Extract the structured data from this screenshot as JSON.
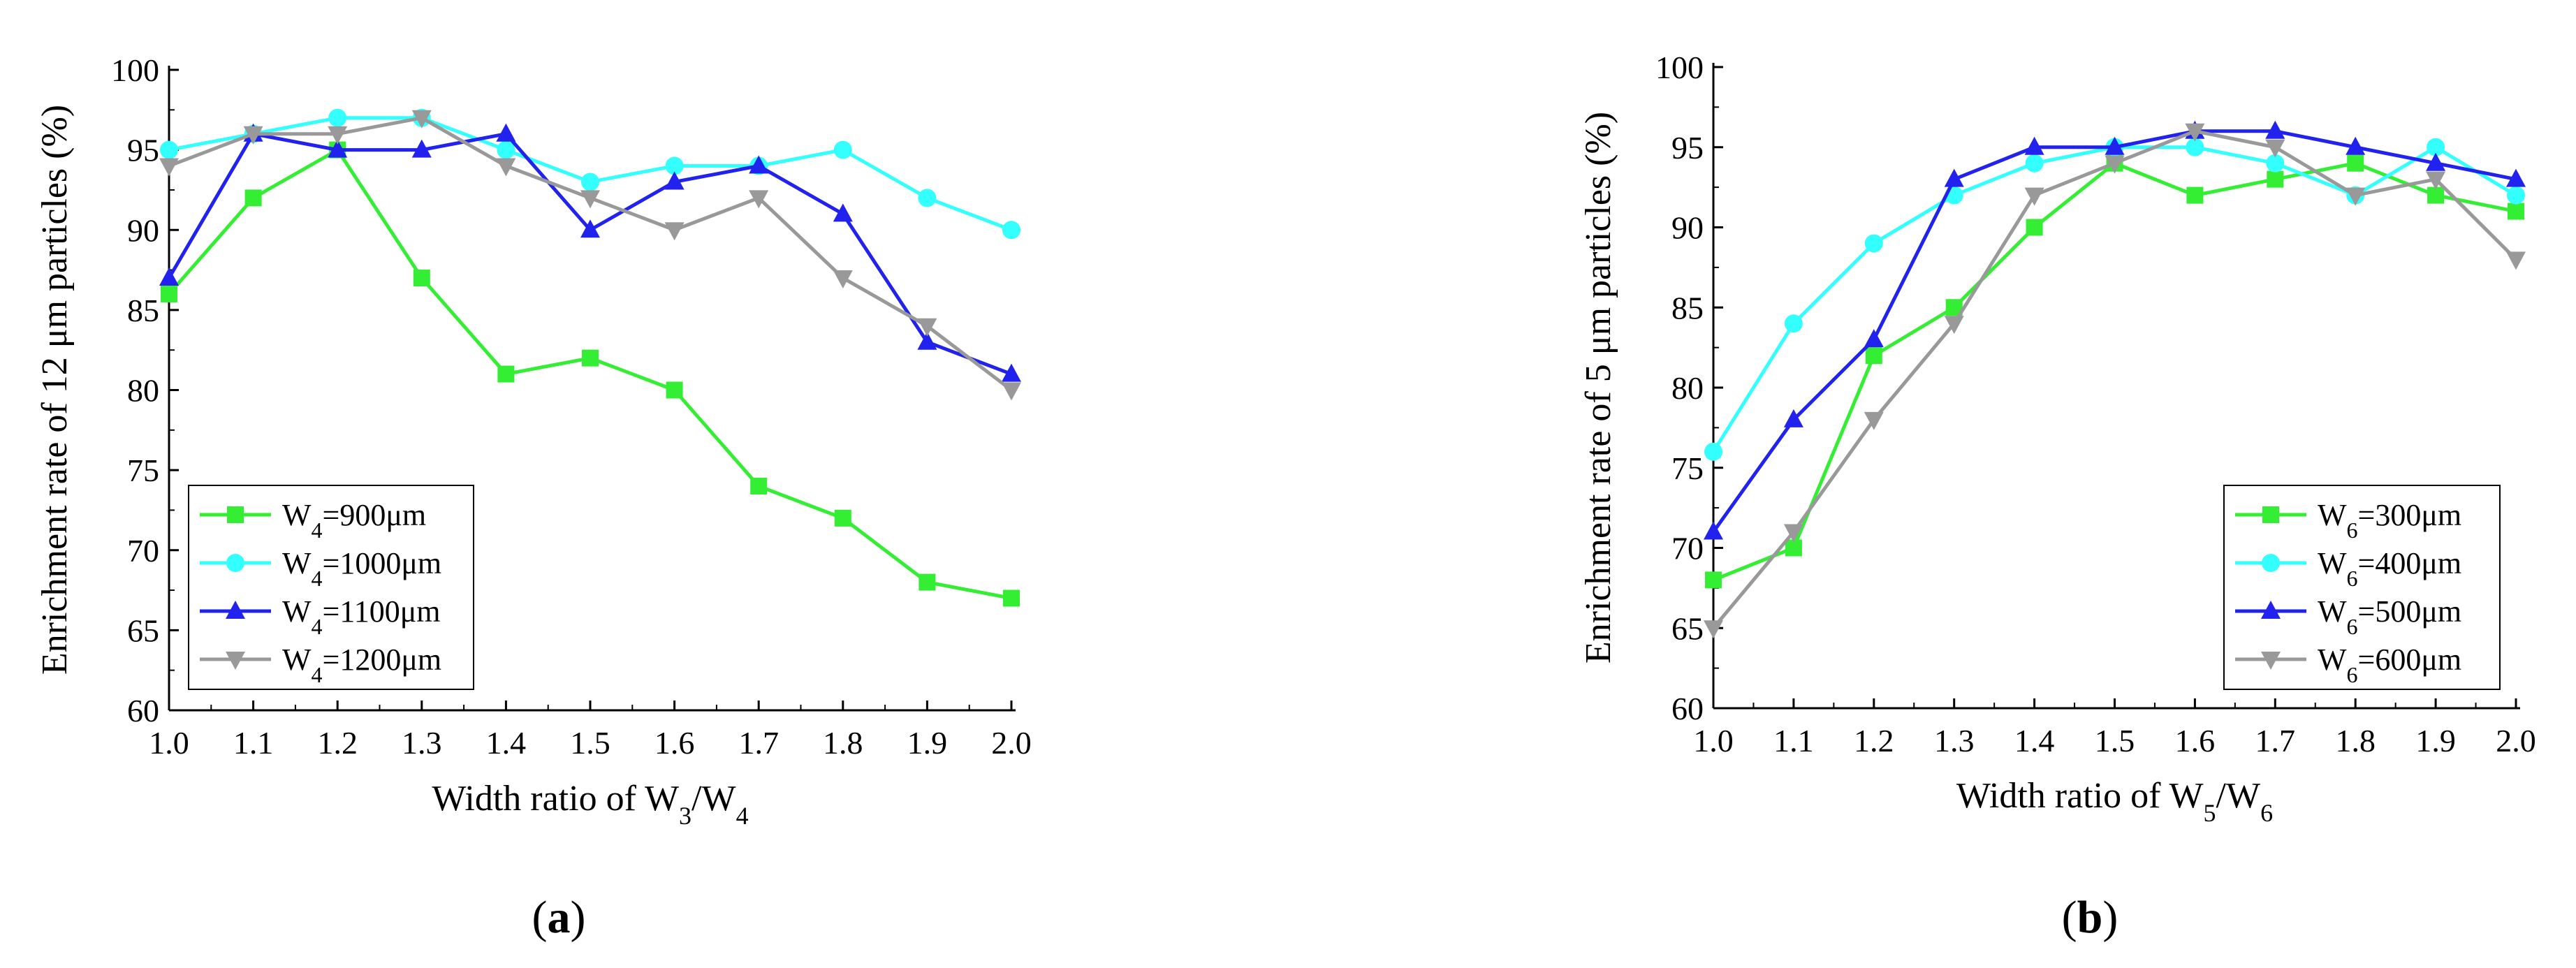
{
  "chart_data": [
    {
      "type": "line",
      "panel_label": "(a)",
      "xlabel": "Width ratio of W3/W4",
      "ylabel": "Enrichment rate of 12 μm particles (%)",
      "xlim": [
        1.0,
        2.0
      ],
      "ylim": [
        60,
        100
      ],
      "x_ticks": [
        "1.0",
        "1.1",
        "1.2",
        "1.3",
        "1.4",
        "1.5",
        "1.6",
        "1.7",
        "1.8",
        "1.9",
        "2.0"
      ],
      "y_ticks": [
        "60",
        "65",
        "70",
        "75",
        "80",
        "85",
        "90",
        "95",
        "100"
      ],
      "legend_position": "bottom-left",
      "x": [
        1.0,
        1.1,
        1.2,
        1.3,
        1.4,
        1.5,
        1.6,
        1.7,
        1.8,
        1.9,
        2.0
      ],
      "series": [
        {
          "name": "W4=900μm",
          "color": "#33ee33",
          "marker": "square",
          "values": [
            86,
            92,
            95,
            87,
            81,
            82,
            80,
            74,
            72,
            68,
            67
          ]
        },
        {
          "name": "W4=1000μm",
          "color": "#33ffff",
          "marker": "circle",
          "values": [
            95,
            96,
            97,
            97,
            95,
            93,
            94,
            94,
            95,
            92,
            90
          ]
        },
        {
          "name": "W4=1100μm",
          "color": "#2222ee",
          "marker": "triangle-up",
          "values": [
            87,
            96,
            95,
            95,
            96,
            90,
            93,
            94,
            91,
            83,
            81
          ]
        },
        {
          "name": "W4=1200μm",
          "color": "#999999",
          "marker": "triangle-down",
          "values": [
            94,
            96,
            96,
            97,
            94,
            92,
            90,
            92,
            87,
            84,
            80
          ]
        }
      ]
    },
    {
      "type": "line",
      "panel_label": "(b)",
      "xlabel": "Width ratio of W5/W6",
      "ylabel": "Enrichment rate of 5 μm particles (%)",
      "xlim": [
        1.0,
        2.0
      ],
      "ylim": [
        60,
        100
      ],
      "x_ticks": [
        "1.0",
        "1.1",
        "1.2",
        "1.3",
        "1.4",
        "1.5",
        "1.6",
        "1.7",
        "1.8",
        "1.9",
        "2.0"
      ],
      "y_ticks": [
        "60",
        "65",
        "70",
        "75",
        "80",
        "85",
        "90",
        "95",
        "100"
      ],
      "legend_position": "bottom-right",
      "x": [
        1.0,
        1.1,
        1.2,
        1.3,
        1.4,
        1.5,
        1.6,
        1.7,
        1.8,
        1.9,
        2.0
      ],
      "series": [
        {
          "name": "W6=300μm",
          "color": "#33ee33",
          "marker": "square",
          "values": [
            68,
            70,
            82,
            85,
            90,
            94,
            92,
            93,
            94,
            92,
            91
          ]
        },
        {
          "name": "W6=400μm",
          "color": "#33ffff",
          "marker": "circle",
          "values": [
            76,
            84,
            89,
            92,
            94,
            95,
            95,
            94,
            92,
            95,
            92
          ]
        },
        {
          "name": "W6=500μm",
          "color": "#2222ee",
          "marker": "triangle-up",
          "values": [
            71,
            78,
            83,
            93,
            95,
            95,
            96,
            96,
            95,
            94,
            93
          ]
        },
        {
          "name": "W6=600μm",
          "color": "#999999",
          "marker": "triangle-down",
          "values": [
            65,
            71,
            78,
            84,
            92,
            94,
            96,
            95,
            92,
            93,
            88
          ]
        }
      ]
    }
  ]
}
